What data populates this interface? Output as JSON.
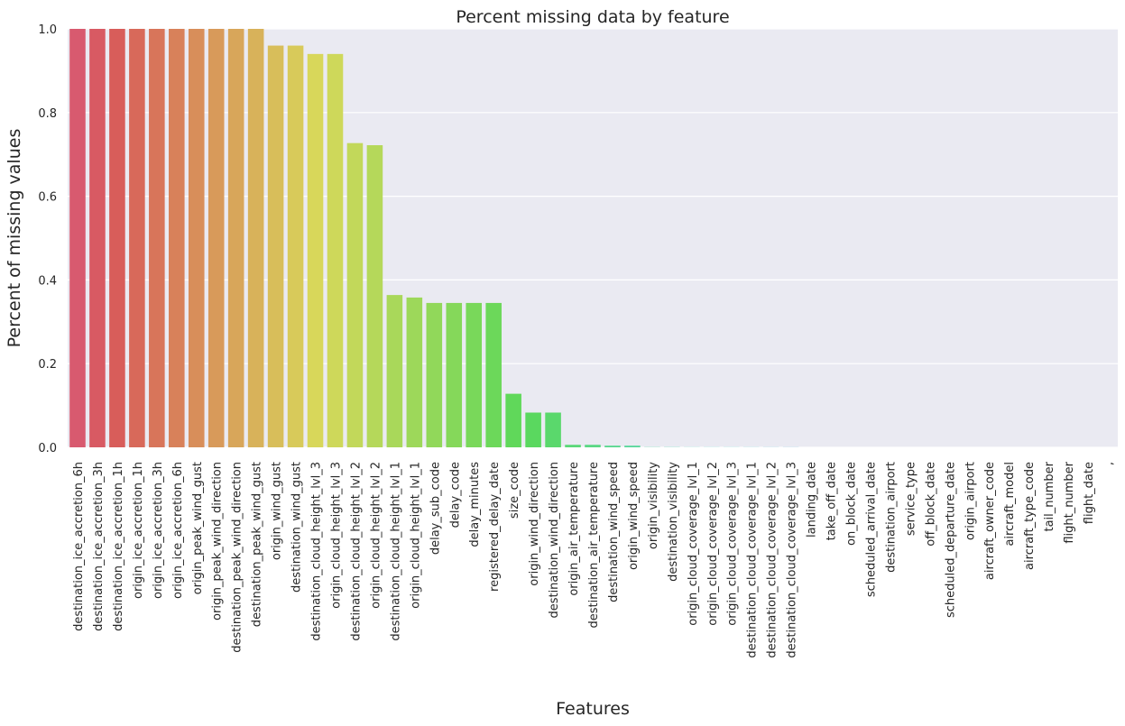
{
  "chart_data": {
    "type": "bar",
    "title": "Percent missing data by feature",
    "xlabel": "Features",
    "ylabel": "Percent of missing values",
    "ylim": [
      0,
      1.0
    ],
    "yticks": [
      "0.0",
      "0.2",
      "0.4",
      "0.6",
      "0.8",
      "1.0"
    ],
    "grid": true,
    "categories": [
      "destination_ice_accretion_6h",
      "destination_ice_accretion_3h",
      "destination_ice_accretion_1h",
      "origin_ice_accretion_1h",
      "origin_ice_accretion_3h",
      "origin_ice_accretion_6h",
      "origin_peak_wind_gust",
      "origin_peak_wind_direction",
      "destination_peak_wind_direction",
      "destination_peak_wind_gust",
      "origin_wind_gust",
      "destination_wind_gust",
      "destination_cloud_height_lvl_3",
      "origin_cloud_height_lvl_3",
      "destination_cloud_height_lvl_2",
      "origin_cloud_height_lvl_2",
      "destination_cloud_height_lvl_1",
      "origin_cloud_height_lvl_1",
      "delay_sub_code",
      "delay_code",
      "delay_minutes",
      "registered_delay_date",
      "size_code",
      "origin_wind_direction",
      "destination_wind_direction",
      "origin_air_temperature",
      "destination_air_temperature",
      "destination_wind_speed",
      "origin_wind_speed",
      "origin_visibility",
      "destination_visibility",
      "origin_cloud_coverage_lvl_1",
      "origin_cloud_coverage_lvl_2",
      "origin_cloud_coverage_lvl_3",
      "destination_cloud_coverage_lvl_1",
      "destination_cloud_coverage_lvl_2",
      "destination_cloud_coverage_lvl_3",
      "landing_date",
      "take_off_date",
      "on_block_date",
      "scheduled_arrival_date",
      "destination_airport",
      "service_type",
      "off_block_date",
      "scheduled_departure_date",
      "origin_airport",
      "aircraft_owner_code",
      "aircraft_model",
      "aircraft_type_code",
      "tail_number",
      "flight_number",
      "flight_date",
      ","
    ],
    "values": [
      1.0,
      1.0,
      1.0,
      1.0,
      1.0,
      1.0,
      1.0,
      1.0,
      1.0,
      1.0,
      0.96,
      0.96,
      0.94,
      0.94,
      0.727,
      0.722,
      0.364,
      0.358,
      0.345,
      0.345,
      0.345,
      0.345,
      0.128,
      0.083,
      0.083,
      0.006,
      0.006,
      0.004,
      0.004,
      0.0005,
      0.0005,
      0.0003,
      0.0003,
      0.0003,
      0.0003,
      0.0003,
      0.0003,
      0,
      0,
      0,
      0,
      0,
      0,
      0,
      0,
      0,
      0,
      0,
      0,
      0,
      0,
      0,
      0
    ]
  }
}
